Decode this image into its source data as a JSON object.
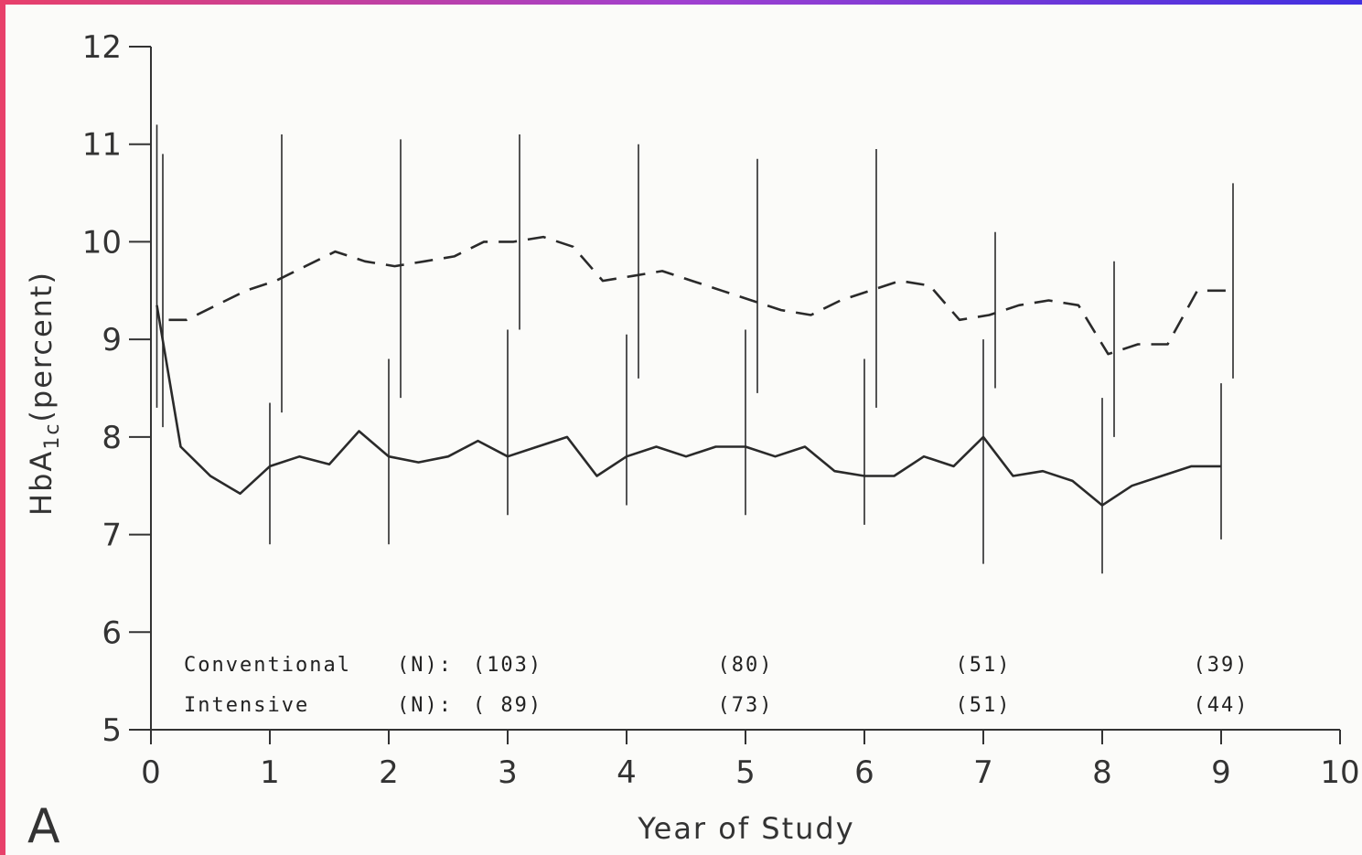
{
  "chart_data": {
    "type": "line",
    "panel_label": "A",
    "xlabel": "Year of Study",
    "ylabel_main": "HbA",
    "ylabel_sub": "1c",
    "ylabel_unit": "(percent)",
    "xlim": [
      0,
      10
    ],
    "ylim": [
      5,
      12
    ],
    "xticks": [
      0,
      1,
      2,
      3,
      4,
      5,
      6,
      7,
      8,
      9,
      10
    ],
    "yticks": [
      5,
      6,
      7,
      8,
      9,
      10,
      11,
      12
    ],
    "series": [
      {
        "style": "solid",
        "points": [
          [
            0.05,
            9.35
          ],
          [
            0.25,
            7.9
          ],
          [
            0.5,
            7.6
          ],
          [
            0.75,
            7.42
          ],
          [
            1.0,
            7.7
          ],
          [
            1.25,
            7.8
          ],
          [
            1.5,
            7.72
          ],
          [
            1.75,
            8.06
          ],
          [
            2.0,
            7.8
          ],
          [
            2.25,
            7.74
          ],
          [
            2.5,
            7.8
          ],
          [
            2.75,
            7.96
          ],
          [
            3.0,
            7.8
          ],
          [
            3.25,
            7.9
          ],
          [
            3.5,
            8.0
          ],
          [
            3.75,
            7.6
          ],
          [
            4.0,
            7.8
          ],
          [
            4.25,
            7.9
          ],
          [
            4.5,
            7.8
          ],
          [
            4.75,
            7.9
          ],
          [
            5.0,
            7.9
          ],
          [
            5.25,
            7.8
          ],
          [
            5.5,
            7.9
          ],
          [
            5.75,
            7.65
          ],
          [
            6.0,
            7.6
          ],
          [
            6.25,
            7.6
          ],
          [
            6.5,
            7.8
          ],
          [
            6.75,
            7.7
          ],
          [
            7.0,
            8.0
          ],
          [
            7.25,
            7.6
          ],
          [
            7.5,
            7.65
          ],
          [
            7.75,
            7.55
          ],
          [
            8.0,
            7.3
          ],
          [
            8.25,
            7.5
          ],
          [
            8.5,
            7.6
          ],
          [
            8.75,
            7.7
          ],
          [
            9.0,
            7.7
          ]
        ],
        "error_bars": [
          [
            0.05,
            8.3,
            11.2
          ],
          [
            1.0,
            6.9,
            8.35
          ],
          [
            2.0,
            6.9,
            8.8
          ],
          [
            3.0,
            7.2,
            9.1
          ],
          [
            4.0,
            7.3,
            9.05
          ],
          [
            5.0,
            7.2,
            9.1
          ],
          [
            6.0,
            7.1,
            8.8
          ],
          [
            7.0,
            6.7,
            9.0
          ],
          [
            8.0,
            6.6,
            8.4
          ],
          [
            9.0,
            6.95,
            8.55
          ]
        ]
      },
      {
        "style": "dashed",
        "points": [
          [
            0.15,
            9.2
          ],
          [
            0.3,
            9.2
          ],
          [
            0.55,
            9.35
          ],
          [
            0.8,
            9.5
          ],
          [
            1.05,
            9.6
          ],
          [
            1.3,
            9.75
          ],
          [
            1.55,
            9.9
          ],
          [
            1.8,
            9.8
          ],
          [
            2.05,
            9.75
          ],
          [
            2.3,
            9.8
          ],
          [
            2.55,
            9.85
          ],
          [
            2.8,
            10.0
          ],
          [
            3.05,
            10.0
          ],
          [
            3.3,
            10.05
          ],
          [
            3.55,
            9.95
          ],
          [
            3.8,
            9.6
          ],
          [
            4.05,
            9.65
          ],
          [
            4.3,
            9.7
          ],
          [
            4.55,
            9.6
          ],
          [
            4.8,
            9.5
          ],
          [
            5.05,
            9.4
          ],
          [
            5.3,
            9.3
          ],
          [
            5.55,
            9.25
          ],
          [
            5.8,
            9.4
          ],
          [
            6.05,
            9.5
          ],
          [
            6.3,
            9.6
          ],
          [
            6.55,
            9.55
          ],
          [
            6.8,
            9.2
          ],
          [
            7.05,
            9.25
          ],
          [
            7.3,
            9.35
          ],
          [
            7.55,
            9.4
          ],
          [
            7.8,
            9.35
          ],
          [
            8.05,
            8.85
          ],
          [
            8.3,
            8.95
          ],
          [
            8.55,
            8.95
          ],
          [
            8.8,
            9.5
          ],
          [
            9.1,
            9.5
          ]
        ],
        "error_bars": [
          [
            0.1,
            8.1,
            10.9
          ],
          [
            1.1,
            8.25,
            11.1
          ],
          [
            2.1,
            8.4,
            11.05
          ],
          [
            3.1,
            9.1,
            11.1
          ],
          [
            4.1,
            8.6,
            11.0
          ],
          [
            5.1,
            8.45,
            10.85
          ],
          [
            6.1,
            8.3,
            10.95
          ],
          [
            7.1,
            8.5,
            10.1
          ],
          [
            8.1,
            8.0,
            9.8
          ],
          [
            9.1,
            8.6,
            10.6
          ]
        ]
      }
    ],
    "n_table": [
      {
        "label": "Conventional",
        "n_label": "(N):",
        "values": [
          "(103)",
          "(80)",
          "(51)",
          "(39)"
        ]
      },
      {
        "label": "Intensive",
        "n_label": "(N):",
        "values": [
          "( 89)",
          "(73)",
          "(51)",
          "(44)"
        ]
      }
    ],
    "n_table_x": [
      3,
      5,
      7,
      9
    ],
    "grid": false,
    "colors": {
      "line": "#2a2a2a",
      "axis": "#333333",
      "background": "#fbfbf9"
    }
  }
}
